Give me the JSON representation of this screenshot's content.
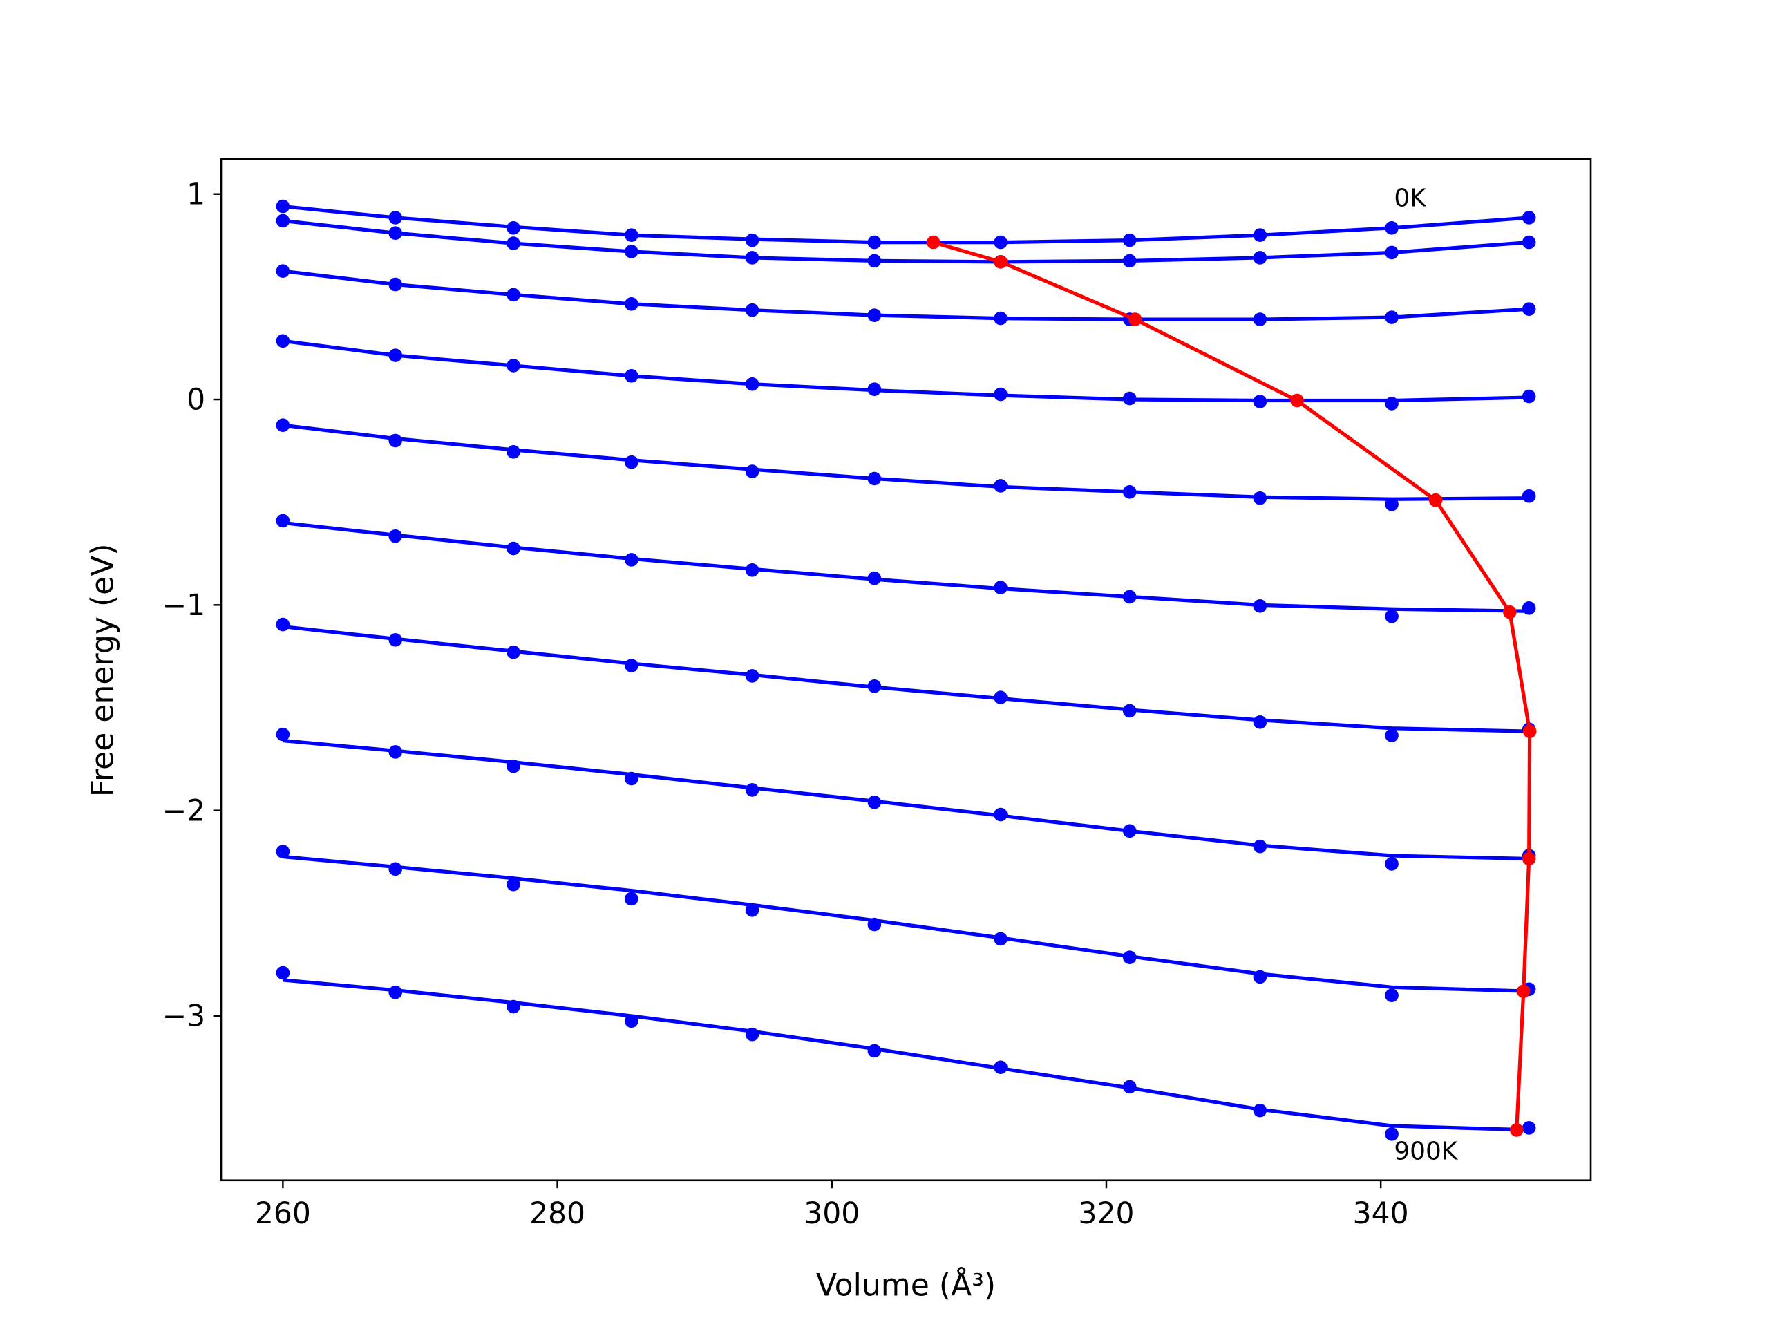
{
  "chart_data": {
    "type": "line",
    "xlabel": "Volume (Å³)",
    "ylabel": "Free energy (eV)",
    "xlim": [
      255.5,
      355.3
    ],
    "ylim": [
      -3.8,
      1.17
    ],
    "xticks": [
      260,
      280,
      300,
      320,
      340
    ],
    "yticks": [
      {
        "value": -3,
        "label": "−3"
      },
      {
        "value": -2,
        "label": "−2"
      },
      {
        "value": -1,
        "label": "−1"
      },
      0,
      1
    ],
    "x": [
      260,
      268.2,
      276.8,
      285.4,
      294.2,
      303.1,
      312.3,
      321.7,
      331.2,
      340.8,
      350.8
    ],
    "point_color": "#0000ff",
    "fit_color": "#0000ff",
    "series": [
      {
        "values": [
          0.94,
          0.885,
          0.835,
          0.8,
          0.775,
          0.765,
          0.765,
          0.775,
          0.8,
          0.835,
          0.885
        ]
      },
      {
        "values": [
          0.87,
          0.81,
          0.76,
          0.72,
          0.69,
          0.675,
          0.67,
          0.675,
          0.69,
          0.715,
          0.765
        ]
      },
      {
        "values": [
          0.625,
          0.56,
          0.51,
          0.465,
          0.435,
          0.41,
          0.395,
          0.39,
          0.39,
          0.4,
          0.44
        ]
      },
      {
        "values": [
          0.285,
          0.215,
          0.165,
          0.115,
          0.075,
          0.05,
          0.025,
          0.005,
          -0.01,
          -0.02,
          0.015
        ]
      },
      {
        "values": [
          -0.125,
          -0.2,
          -0.255,
          -0.305,
          -0.35,
          -0.385,
          -0.42,
          -0.45,
          -0.48,
          -0.51,
          -0.47
        ]
      },
      {
        "values": [
          -0.59,
          -0.665,
          -0.725,
          -0.78,
          -0.83,
          -0.87,
          -0.915,
          -0.96,
          -1.005,
          -1.055,
          -1.015
        ]
      },
      {
        "values": [
          -1.095,
          -1.17,
          -1.23,
          -1.295,
          -1.345,
          -1.395,
          -1.45,
          -1.515,
          -1.57,
          -1.635,
          -1.605
        ]
      },
      {
        "values": [
          -1.63,
          -1.715,
          -1.785,
          -1.845,
          -1.9,
          -1.96,
          -2.02,
          -2.1,
          -2.175,
          -2.26,
          -2.22
        ]
      },
      {
        "values": [
          -2.2,
          -2.285,
          -2.36,
          -2.43,
          -2.485,
          -2.555,
          -2.625,
          -2.715,
          -2.81,
          -2.9,
          -2.87
        ]
      },
      {
        "values": [
          -2.79,
          -2.885,
          -2.955,
          -3.025,
          -3.09,
          -3.17,
          -3.25,
          -3.345,
          -3.46,
          -3.575,
          -3.545
        ]
      }
    ],
    "fits": [
      {
        "values": [
          0.94,
          0.885,
          0.84,
          0.8,
          0.78,
          0.765,
          0.765,
          0.775,
          0.8,
          0.835,
          0.885
        ]
      },
      {
        "values": [
          0.87,
          0.81,
          0.76,
          0.72,
          0.69,
          0.675,
          0.67,
          0.675,
          0.69,
          0.715,
          0.765
        ]
      },
      {
        "values": [
          0.625,
          0.56,
          0.51,
          0.465,
          0.435,
          0.41,
          0.395,
          0.39,
          0.39,
          0.4,
          0.44
        ]
      },
      {
        "values": [
          0.285,
          0.215,
          0.165,
          0.115,
          0.075,
          0.045,
          0.02,
          0.0,
          -0.005,
          -0.005,
          0.01
        ]
      },
      {
        "values": [
          -0.125,
          -0.19,
          -0.245,
          -0.295,
          -0.34,
          -0.385,
          -0.425,
          -0.45,
          -0.475,
          -0.485,
          -0.48
        ]
      },
      {
        "values": [
          -0.6,
          -0.66,
          -0.72,
          -0.775,
          -0.825,
          -0.875,
          -0.92,
          -0.96,
          -1.0,
          -1.02,
          -1.03
        ]
      },
      {
        "values": [
          -1.105,
          -1.165,
          -1.225,
          -1.285,
          -1.34,
          -1.4,
          -1.455,
          -1.51,
          -1.56,
          -1.6,
          -1.615
        ]
      },
      {
        "values": [
          -1.66,
          -1.71,
          -1.765,
          -1.825,
          -1.89,
          -1.955,
          -2.025,
          -2.1,
          -2.17,
          -2.22,
          -2.235
        ]
      },
      {
        "values": [
          -2.225,
          -2.275,
          -2.33,
          -2.39,
          -2.46,
          -2.535,
          -2.62,
          -2.71,
          -2.795,
          -2.86,
          -2.88
        ]
      },
      {
        "values": [
          -2.825,
          -2.875,
          -2.935,
          -3.0,
          -3.075,
          -3.16,
          -3.255,
          -3.35,
          -3.455,
          -3.535,
          -3.555
        ]
      }
    ],
    "minima": {
      "color": "#ff0000",
      "x": [
        307.4,
        312.3,
        322.1,
        333.9,
        344.0,
        349.4,
        350.85,
        350.8,
        350.4,
        349.9
      ],
      "values": [
        0.765,
        0.67,
        0.39,
        -0.005,
        -0.49,
        -1.035,
        -1.615,
        -2.235,
        -2.88,
        -3.555
      ]
    },
    "annotations": [
      "0K",
      "900K"
    ]
  }
}
